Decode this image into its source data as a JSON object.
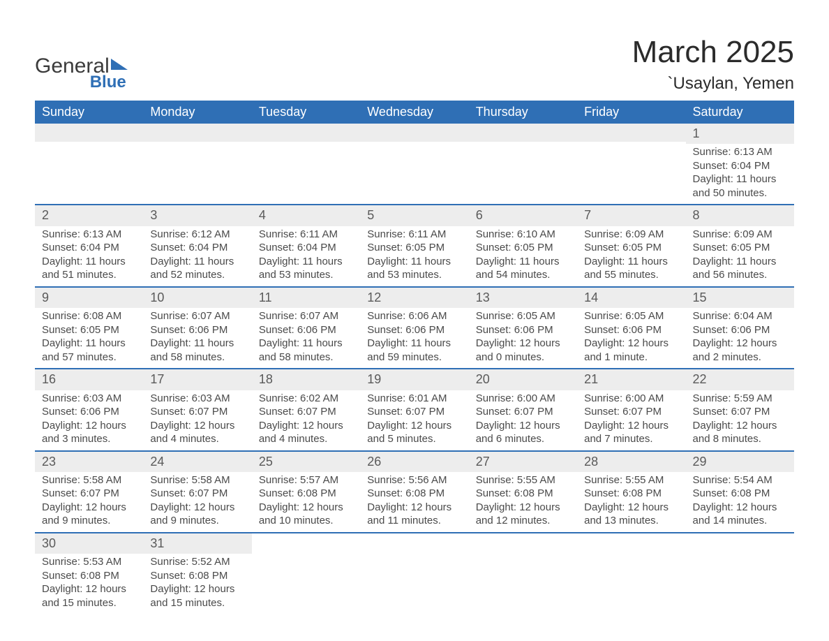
{
  "brand": {
    "part1": "General",
    "part2": "Blue"
  },
  "title": "March 2025",
  "subtitle": "`Usaylan, Yemen",
  "colors": {
    "header_bg": "#2f6fb5",
    "header_text": "#ffffff",
    "daynum_bg": "#ededed",
    "row_border": "#2f6fb5",
    "body_text": "#4a4a4a",
    "page_bg": "#ffffff"
  },
  "weekdays": [
    "Sunday",
    "Monday",
    "Tuesday",
    "Wednesday",
    "Thursday",
    "Friday",
    "Saturday"
  ],
  "weeks": [
    [
      null,
      null,
      null,
      null,
      null,
      null,
      {
        "n": "1",
        "sunrise": "Sunrise: 6:13 AM",
        "sunset": "Sunset: 6:04 PM",
        "daylight": "Daylight: 11 hours and 50 minutes."
      }
    ],
    [
      {
        "n": "2",
        "sunrise": "Sunrise: 6:13 AM",
        "sunset": "Sunset: 6:04 PM",
        "daylight": "Daylight: 11 hours and 51 minutes."
      },
      {
        "n": "3",
        "sunrise": "Sunrise: 6:12 AM",
        "sunset": "Sunset: 6:04 PM",
        "daylight": "Daylight: 11 hours and 52 minutes."
      },
      {
        "n": "4",
        "sunrise": "Sunrise: 6:11 AM",
        "sunset": "Sunset: 6:04 PM",
        "daylight": "Daylight: 11 hours and 53 minutes."
      },
      {
        "n": "5",
        "sunrise": "Sunrise: 6:11 AM",
        "sunset": "Sunset: 6:05 PM",
        "daylight": "Daylight: 11 hours and 53 minutes."
      },
      {
        "n": "6",
        "sunrise": "Sunrise: 6:10 AM",
        "sunset": "Sunset: 6:05 PM",
        "daylight": "Daylight: 11 hours and 54 minutes."
      },
      {
        "n": "7",
        "sunrise": "Sunrise: 6:09 AM",
        "sunset": "Sunset: 6:05 PM",
        "daylight": "Daylight: 11 hours and 55 minutes."
      },
      {
        "n": "8",
        "sunrise": "Sunrise: 6:09 AM",
        "sunset": "Sunset: 6:05 PM",
        "daylight": "Daylight: 11 hours and 56 minutes."
      }
    ],
    [
      {
        "n": "9",
        "sunrise": "Sunrise: 6:08 AM",
        "sunset": "Sunset: 6:05 PM",
        "daylight": "Daylight: 11 hours and 57 minutes."
      },
      {
        "n": "10",
        "sunrise": "Sunrise: 6:07 AM",
        "sunset": "Sunset: 6:06 PM",
        "daylight": "Daylight: 11 hours and 58 minutes."
      },
      {
        "n": "11",
        "sunrise": "Sunrise: 6:07 AM",
        "sunset": "Sunset: 6:06 PM",
        "daylight": "Daylight: 11 hours and 58 minutes."
      },
      {
        "n": "12",
        "sunrise": "Sunrise: 6:06 AM",
        "sunset": "Sunset: 6:06 PM",
        "daylight": "Daylight: 11 hours and 59 minutes."
      },
      {
        "n": "13",
        "sunrise": "Sunrise: 6:05 AM",
        "sunset": "Sunset: 6:06 PM",
        "daylight": "Daylight: 12 hours and 0 minutes."
      },
      {
        "n": "14",
        "sunrise": "Sunrise: 6:05 AM",
        "sunset": "Sunset: 6:06 PM",
        "daylight": "Daylight: 12 hours and 1 minute."
      },
      {
        "n": "15",
        "sunrise": "Sunrise: 6:04 AM",
        "sunset": "Sunset: 6:06 PM",
        "daylight": "Daylight: 12 hours and 2 minutes."
      }
    ],
    [
      {
        "n": "16",
        "sunrise": "Sunrise: 6:03 AM",
        "sunset": "Sunset: 6:06 PM",
        "daylight": "Daylight: 12 hours and 3 minutes."
      },
      {
        "n": "17",
        "sunrise": "Sunrise: 6:03 AM",
        "sunset": "Sunset: 6:07 PM",
        "daylight": "Daylight: 12 hours and 4 minutes."
      },
      {
        "n": "18",
        "sunrise": "Sunrise: 6:02 AM",
        "sunset": "Sunset: 6:07 PM",
        "daylight": "Daylight: 12 hours and 4 minutes."
      },
      {
        "n": "19",
        "sunrise": "Sunrise: 6:01 AM",
        "sunset": "Sunset: 6:07 PM",
        "daylight": "Daylight: 12 hours and 5 minutes."
      },
      {
        "n": "20",
        "sunrise": "Sunrise: 6:00 AM",
        "sunset": "Sunset: 6:07 PM",
        "daylight": "Daylight: 12 hours and 6 minutes."
      },
      {
        "n": "21",
        "sunrise": "Sunrise: 6:00 AM",
        "sunset": "Sunset: 6:07 PM",
        "daylight": "Daylight: 12 hours and 7 minutes."
      },
      {
        "n": "22",
        "sunrise": "Sunrise: 5:59 AM",
        "sunset": "Sunset: 6:07 PM",
        "daylight": "Daylight: 12 hours and 8 minutes."
      }
    ],
    [
      {
        "n": "23",
        "sunrise": "Sunrise: 5:58 AM",
        "sunset": "Sunset: 6:07 PM",
        "daylight": "Daylight: 12 hours and 9 minutes."
      },
      {
        "n": "24",
        "sunrise": "Sunrise: 5:58 AM",
        "sunset": "Sunset: 6:07 PM",
        "daylight": "Daylight: 12 hours and 9 minutes."
      },
      {
        "n": "25",
        "sunrise": "Sunrise: 5:57 AM",
        "sunset": "Sunset: 6:08 PM",
        "daylight": "Daylight: 12 hours and 10 minutes."
      },
      {
        "n": "26",
        "sunrise": "Sunrise: 5:56 AM",
        "sunset": "Sunset: 6:08 PM",
        "daylight": "Daylight: 12 hours and 11 minutes."
      },
      {
        "n": "27",
        "sunrise": "Sunrise: 5:55 AM",
        "sunset": "Sunset: 6:08 PM",
        "daylight": "Daylight: 12 hours and 12 minutes."
      },
      {
        "n": "28",
        "sunrise": "Sunrise: 5:55 AM",
        "sunset": "Sunset: 6:08 PM",
        "daylight": "Daylight: 12 hours and 13 minutes."
      },
      {
        "n": "29",
        "sunrise": "Sunrise: 5:54 AM",
        "sunset": "Sunset: 6:08 PM",
        "daylight": "Daylight: 12 hours and 14 minutes."
      }
    ],
    [
      {
        "n": "30",
        "sunrise": "Sunrise: 5:53 AM",
        "sunset": "Sunset: 6:08 PM",
        "daylight": "Daylight: 12 hours and 15 minutes."
      },
      {
        "n": "31",
        "sunrise": "Sunrise: 5:52 AM",
        "sunset": "Sunset: 6:08 PM",
        "daylight": "Daylight: 12 hours and 15 minutes."
      },
      null,
      null,
      null,
      null,
      null
    ]
  ]
}
